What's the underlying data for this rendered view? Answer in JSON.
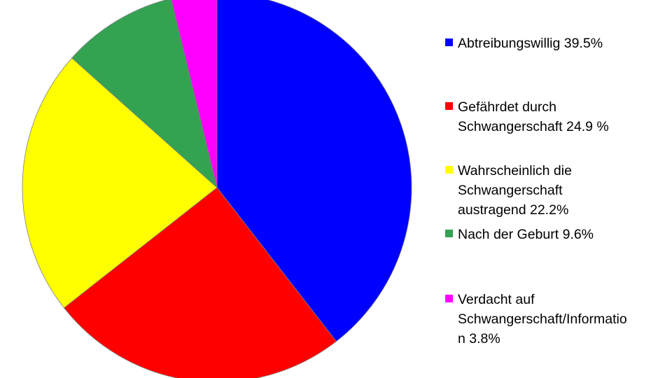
{
  "chart_data": {
    "type": "pie",
    "title": "",
    "start_angle_deg": 0,
    "direction": "clockwise",
    "legend_position": "right",
    "slices": [
      {
        "label": "Abtreibungswillig 39.5%",
        "value": 39.5,
        "color": "#0000ff"
      },
      {
        "label": "Gefährdet durch\nSchwangerschaft 24.9 %",
        "value": 24.9,
        "color": "#ff0000"
      },
      {
        "label": "Wahrscheinlich die\nSchwangerschaft\naustragend 22.2%",
        "value": 22.2,
        "color": "#ffff00"
      },
      {
        "label": "Nach der Geburt 9.6%",
        "value": 9.6,
        "color": "#33a352"
      },
      {
        "label": "Verdacht auf\nSchwangerschaft/Informatio\nn 3.8%",
        "value": 3.8,
        "color": "#ff00ff"
      }
    ]
  }
}
